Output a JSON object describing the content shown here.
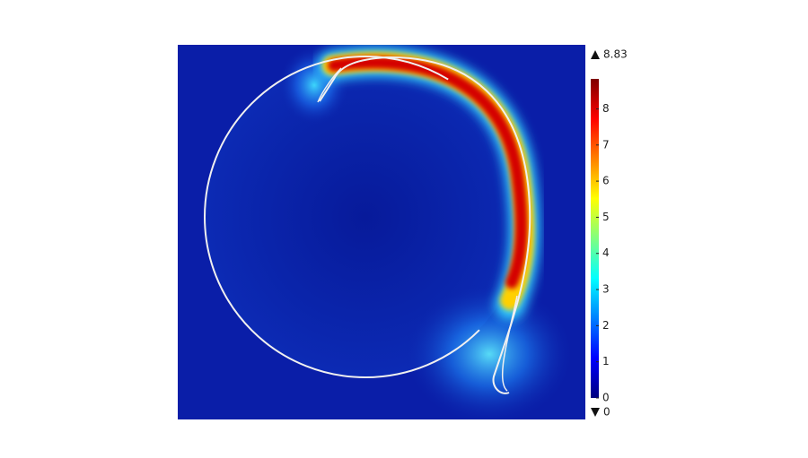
{
  "chart_data": {
    "type": "field",
    "colorbar": {
      "min": 0,
      "max": 8.83,
      "ticks": [
        0,
        1,
        2,
        3,
        4,
        5,
        6,
        7,
        8
      ],
      "colormap": [
        "#00007f",
        "#0000ff",
        "#0080ff",
        "#00ffff",
        "#80ff80",
        "#ffff00",
        "#ff8000",
        "#ff0000",
        "#7f0000"
      ]
    },
    "background": "#0a1ea8"
  }
}
